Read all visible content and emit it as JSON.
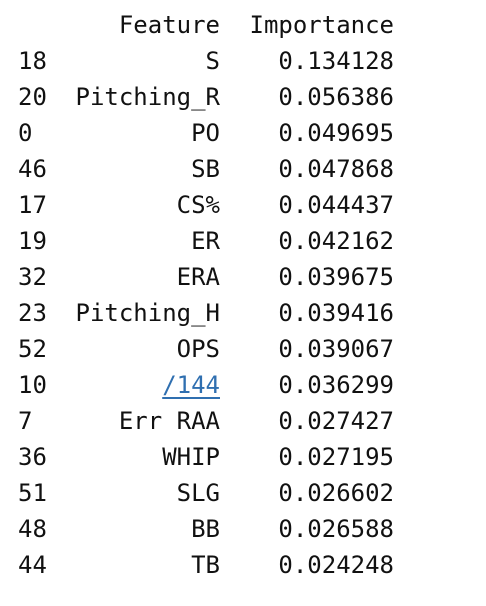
{
  "table": {
    "columns": {
      "feature": "Feature",
      "importance": "Importance"
    },
    "rows": [
      {
        "index": "18",
        "feature": "S",
        "importance": "0.134128"
      },
      {
        "index": "20",
        "feature": "Pitching_R",
        "importance": "0.056386"
      },
      {
        "index": "0",
        "feature": "PO",
        "importance": "0.049695"
      },
      {
        "index": "46",
        "feature": "SB",
        "importance": "0.047868"
      },
      {
        "index": "17",
        "feature": "CS%",
        "importance": "0.044437"
      },
      {
        "index": "19",
        "feature": "ER",
        "importance": "0.042162"
      },
      {
        "index": "32",
        "feature": "ERA",
        "importance": "0.039675"
      },
      {
        "index": "23",
        "feature": "Pitching_H",
        "importance": "0.039416"
      },
      {
        "index": "52",
        "feature": "OPS",
        "importance": "0.039067"
      },
      {
        "index": "10",
        "feature": "/144",
        "importance": "0.036299",
        "is_link": true
      },
      {
        "index": "7",
        "feature": "Err RAA",
        "importance": "0.027427"
      },
      {
        "index": "36",
        "feature": "WHIP",
        "importance": "0.027195"
      },
      {
        "index": "51",
        "feature": "SLG",
        "importance": "0.026602"
      },
      {
        "index": "48",
        "feature": "BB",
        "importance": "0.026588"
      },
      {
        "index": "44",
        "feature": "TB",
        "importance": "0.024248"
      }
    ]
  },
  "colors": {
    "text": "#111111",
    "link": "#2f6fb0",
    "background": "#ffffff"
  }
}
